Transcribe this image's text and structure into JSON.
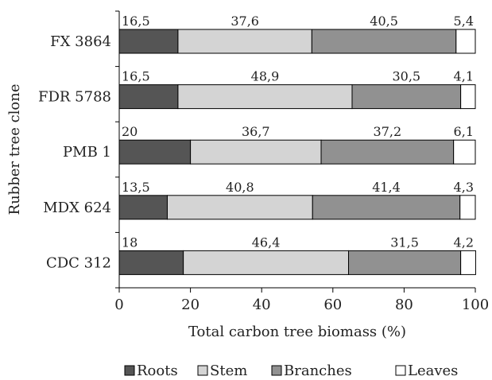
{
  "chart_data": {
    "type": "bar",
    "orientation": "horizontal",
    "stacked": true,
    "categories": [
      "FX 3864",
      "FDR 5788",
      "PMB 1",
      "MDX 624",
      "CDC 312"
    ],
    "series": [
      {
        "name": "Roots",
        "values": [
          16.5,
          16.5,
          20,
          13.5,
          18
        ],
        "labels": [
          "16,5",
          "16,5",
          "20",
          "13,5",
          "18"
        ],
        "color": "#555555"
      },
      {
        "name": "Stem",
        "values": [
          37.6,
          48.9,
          36.7,
          40.8,
          46.4
        ],
        "labels": [
          "37,6",
          "48,9",
          "36,7",
          "40,8",
          "46,4"
        ],
        "color": "#d4d4d4"
      },
      {
        "name": "Branches",
        "values": [
          40.5,
          30.5,
          37.2,
          41.4,
          31.5
        ],
        "labels": [
          "40,5",
          "30,5",
          "37,2",
          "41,4",
          "31,5"
        ],
        "color": "#919191"
      },
      {
        "name": "Leaves",
        "values": [
          5.4,
          4.1,
          6.1,
          4.3,
          4.2
        ],
        "labels": [
          "5,4",
          "4,1",
          "6,1",
          "4,3",
          "4,2"
        ],
        "color": "#ffffff"
      }
    ],
    "xlabel": "Total carbon tree biomass (%)",
    "ylabel": "Rubber tree clone",
    "xlim": [
      0,
      100
    ],
    "xticks": [
      "0",
      "20",
      "40",
      "60",
      "80",
      "100"
    ],
    "grid": false,
    "legend": "bottom"
  }
}
